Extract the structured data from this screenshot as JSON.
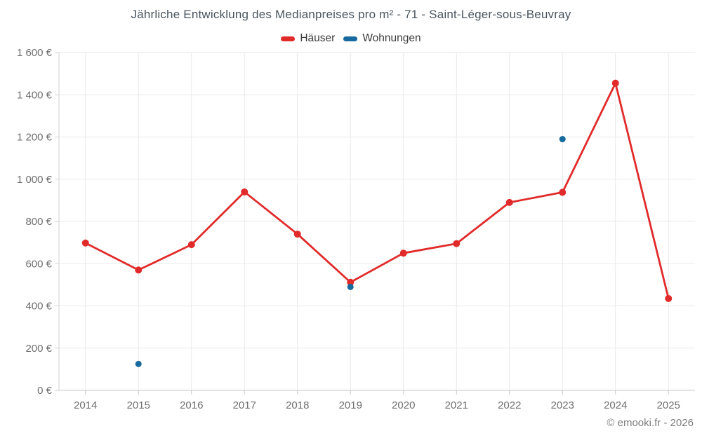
{
  "chart_data": {
    "type": "line",
    "title": "Jährliche Entwicklung des Medianpreises pro m² - 71 - Saint-Léger-sous-Beuvray",
    "categories": [
      "2014",
      "2015",
      "2016",
      "2017",
      "2018",
      "2019",
      "2020",
      "2021",
      "2022",
      "2023",
      "2024",
      "2025"
    ],
    "series": [
      {
        "id": "haeuser",
        "name": "Häuser",
        "color": "#e12b2b",
        "mode": "line+markers",
        "values": [
          698,
          570,
          690,
          940,
          740,
          512,
          650,
          695,
          890,
          938,
          1455,
          435
        ]
      },
      {
        "id": "wohnungen",
        "name": "Wohnungen",
        "color": "#176a9d",
        "mode": "markers",
        "values": [
          null,
          125,
          null,
          null,
          null,
          490,
          null,
          null,
          null,
          1190,
          null,
          null
        ]
      }
    ],
    "xlabel": "",
    "ylabel": "",
    "ylim": [
      0,
      1600
    ],
    "yticks": [
      {
        "value": 0,
        "label": "0 €"
      },
      {
        "value": 200,
        "label": "200 €"
      },
      {
        "value": 400,
        "label": "400 €"
      },
      {
        "value": 600,
        "label": "600 €"
      },
      {
        "value": 800,
        "label": "800 €"
      },
      {
        "value": 1000,
        "label": "1 000 €"
      },
      {
        "value": 1200,
        "label": "1 200 €"
      },
      {
        "value": 1400,
        "label": "1 400 €"
      },
      {
        "value": 1600,
        "label": "1 600 €"
      }
    ],
    "grid": true,
    "legend_position": "top",
    "colors": {
      "gridline": "#e9e9e9",
      "axis_line": "#c9c9c9",
      "tick_label": "#6e6e6e"
    }
  },
  "footer": {
    "copyright": "© emooki.fr - 2026"
  }
}
